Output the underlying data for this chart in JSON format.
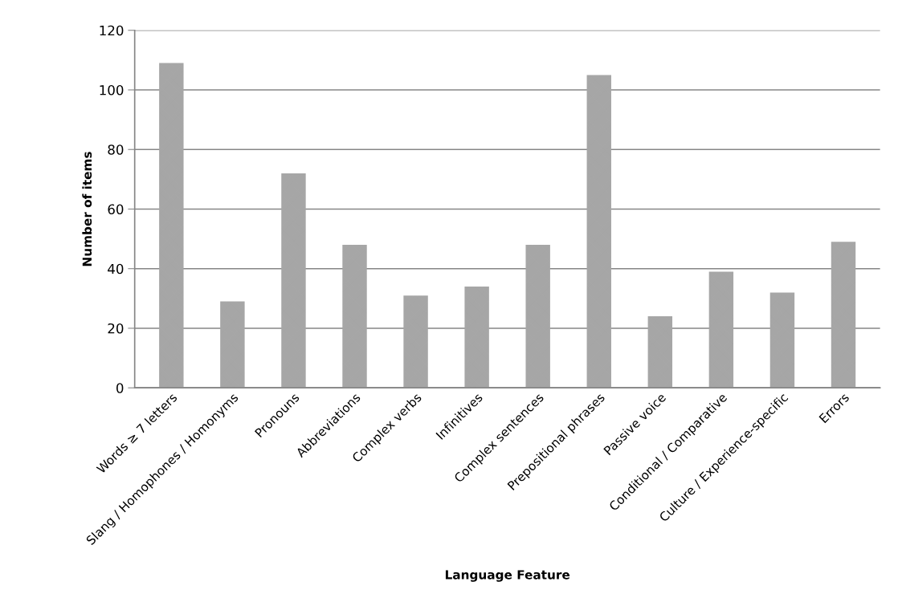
{
  "chart_data": {
    "type": "bar",
    "xlabel": "Language Feature",
    "ylabel": "Number of items",
    "categories": [
      "Words ≥ 7 letters",
      "Slang / Homophones / Homonyms",
      "Pronouns",
      "Abbreviations",
      "Complex verbs",
      "Infinitives",
      "Complex sentences",
      "Prepositional phrases",
      "Passive voice",
      "Conditional / Comparative",
      "Culture / Experience-specific",
      "Errors"
    ],
    "values": [
      109,
      29,
      72,
      48,
      31,
      34,
      48,
      105,
      24,
      39,
      32,
      49
    ],
    "color": "#a6a6a6",
    "ylim": [
      0,
      120
    ],
    "yticks": [
      0,
      20,
      40,
      60,
      80,
      100,
      120
    ],
    "grid": "y"
  }
}
